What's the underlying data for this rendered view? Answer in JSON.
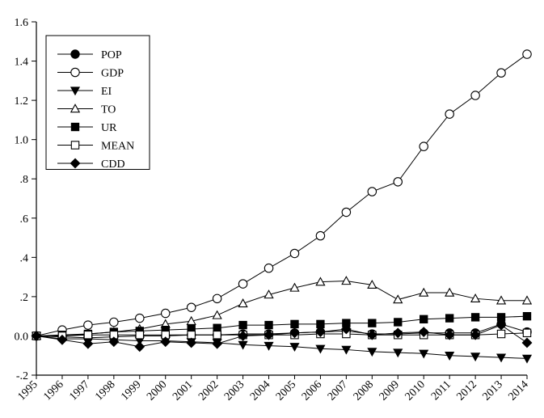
{
  "chart_data": {
    "type": "line",
    "title": "",
    "xlabel": "",
    "ylabel": "",
    "x": [
      "1995",
      "1996",
      "1997",
      "1998",
      "1999",
      "2000",
      "2001",
      "2002",
      "2003",
      "2004",
      "2005",
      "2006",
      "2007",
      "2008",
      "2009",
      "2010",
      "2011",
      "2012",
      "2013",
      "2014"
    ],
    "ylim": [
      -0.2,
      1.6
    ],
    "yticks": [
      {
        "value": -0.2,
        "label": "-.2"
      },
      {
        "value": 0.0,
        "label": "0.0"
      },
      {
        "value": 0.2,
        "label": ".2"
      },
      {
        "value": 0.4,
        "label": ".4"
      },
      {
        "value": 0.6,
        "label": ".6"
      },
      {
        "value": 0.8,
        "label": ".8"
      },
      {
        "value": 1.0,
        "label": "1.0"
      },
      {
        "value": 1.2,
        "label": "1.2"
      },
      {
        "value": 1.4,
        "label": "1.4"
      },
      {
        "value": 1.6,
        "label": "1.6"
      }
    ],
    "grid": false,
    "legend_position": "top-left",
    "series": [
      {
        "name": "POP",
        "marker": "circle-filled",
        "values": [
          0,
          -0.005,
          -0.01,
          -0.005,
          0.0,
          0.0,
          0.005,
          0.005,
          0.01,
          0.01,
          0.015,
          0.02,
          0.025,
          0.01,
          0.01,
          0.015,
          0.015,
          0.015,
          0.06,
          0.02
        ]
      },
      {
        "name": "GDP",
        "marker": "circle-open",
        "values": [
          0,
          0.03,
          0.055,
          0.07,
          0.09,
          0.115,
          0.145,
          0.19,
          0.265,
          0.345,
          0.42,
          0.51,
          0.63,
          0.735,
          0.785,
          0.965,
          1.13,
          1.225,
          1.34,
          1.435
        ]
      },
      {
        "name": "EI",
        "marker": "triangle-down-filled",
        "values": [
          0,
          -0.015,
          -0.015,
          -0.02,
          -0.025,
          -0.025,
          -0.03,
          -0.035,
          -0.045,
          -0.05,
          -0.055,
          -0.065,
          -0.07,
          -0.08,
          -0.085,
          -0.09,
          -0.1,
          -0.105,
          -0.11,
          -0.115
        ]
      },
      {
        "name": "TO",
        "marker": "triangle-up-open",
        "values": [
          0,
          0.0,
          0.01,
          0.02,
          0.035,
          0.06,
          0.075,
          0.105,
          0.165,
          0.21,
          0.245,
          0.275,
          0.28,
          0.26,
          0.185,
          0.22,
          0.22,
          0.19,
          0.18,
          0.18
        ]
      },
      {
        "name": "UR",
        "marker": "square-filled",
        "values": [
          0,
          0.005,
          0.01,
          0.02,
          0.025,
          0.03,
          0.035,
          0.04,
          0.055,
          0.055,
          0.06,
          0.06,
          0.065,
          0.065,
          0.07,
          0.085,
          0.09,
          0.095,
          0.095,
          0.1
        ]
      },
      {
        "name": "MEAN",
        "marker": "square-open",
        "values": [
          0,
          0.0,
          0.005,
          0.005,
          0.005,
          0.005,
          0.005,
          0.005,
          0.005,
          0.005,
          0.005,
          0.01,
          0.01,
          0.005,
          0.005,
          0.005,
          0.005,
          0.005,
          0.01,
          0.015
        ]
      },
      {
        "name": "CDD",
        "marker": "diamond-filled",
        "values": [
          0,
          -0.02,
          -0.04,
          -0.03,
          -0.055,
          -0.03,
          -0.035,
          -0.04,
          0.0,
          0.005,
          0.015,
          0.02,
          0.035,
          0.005,
          0.015,
          0.02,
          0.005,
          0.005,
          0.055,
          -0.035
        ]
      }
    ]
  }
}
